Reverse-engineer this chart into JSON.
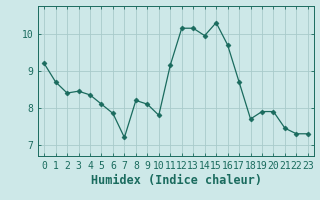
{
  "x": [
    0,
    1,
    2,
    3,
    4,
    5,
    6,
    7,
    8,
    9,
    10,
    11,
    12,
    13,
    14,
    15,
    16,
    17,
    18,
    19,
    20,
    21,
    22,
    23
  ],
  "y": [
    9.2,
    8.7,
    8.4,
    8.45,
    8.35,
    8.1,
    7.85,
    7.2,
    8.2,
    8.1,
    7.8,
    9.15,
    10.15,
    10.15,
    9.95,
    10.3,
    9.7,
    8.7,
    7.7,
    7.9,
    7.9,
    7.45,
    7.3,
    7.3
  ],
  "line_color": "#1a6b5e",
  "marker": "D",
  "marker_size": 2.5,
  "xlabel": "Humidex (Indice chaleur)",
  "ylim": [
    6.7,
    10.75
  ],
  "xlim": [
    -0.5,
    23.5
  ],
  "bg_color": "#cde8e8",
  "grid_color": "#a8cbcb",
  "tick_color": "#1a6b5e",
  "label_color": "#1a6b5e",
  "yticks": [
    7,
    8,
    9,
    10
  ],
  "xticks": [
    0,
    1,
    2,
    3,
    4,
    5,
    6,
    7,
    8,
    9,
    10,
    11,
    12,
    13,
    14,
    15,
    16,
    17,
    18,
    19,
    20,
    21,
    22,
    23
  ],
  "xlabel_fontsize": 8.5,
  "tick_fontsize": 7
}
